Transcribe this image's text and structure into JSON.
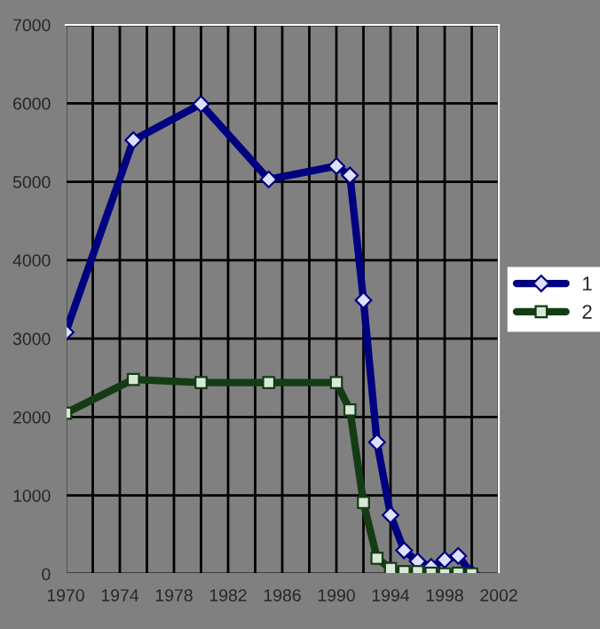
{
  "chart_data": {
    "type": "line",
    "x": [
      1970,
      1975,
      1980,
      1985,
      1990,
      1991,
      1992,
      1993,
      1994,
      1995,
      1996,
      1997,
      1998,
      1999,
      2000
    ],
    "series": [
      {
        "name": "1",
        "color": "#000080",
        "marker": "diamond",
        "values": [
          3080,
          5530,
          5990,
          5030,
          5200,
          5080,
          3490,
          1680,
          750,
          300,
          160,
          90,
          180,
          230,
          0
        ]
      },
      {
        "name": "2",
        "color": "#143c14",
        "marker": "square",
        "values": [
          2050,
          2480,
          2440,
          2440,
          2440,
          2090,
          910,
          200,
          70,
          30,
          30,
          10,
          0,
          10,
          0
        ]
      }
    ],
    "xlim": [
      1970,
      2002
    ],
    "xticks": [
      1970,
      {
        "value": 1972,
        "label": null
      },
      1974,
      {
        "value": 1976,
        "label": null
      },
      1978,
      {
        "value": 1980,
        "label": null
      },
      1982,
      {
        "value": 1984,
        "label": null
      },
      1986,
      {
        "value": 1988,
        "label": null
      },
      1990,
      {
        "value": 1992,
        "label": null
      },
      1994,
      {
        "value": 1996,
        "label": null
      },
      1998,
      {
        "value": 2000,
        "label": null
      },
      2002
    ],
    "ylim": [
      0,
      7000
    ],
    "yticks": [
      0,
      1000,
      2000,
      3000,
      4000,
      5000,
      6000,
      7000
    ],
    "grid": true,
    "legend": "right"
  }
}
